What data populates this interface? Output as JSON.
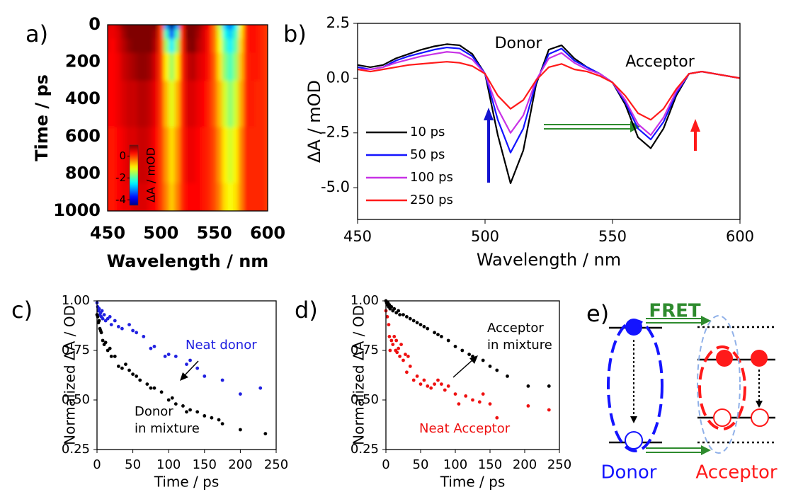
{
  "chart_data": [
    {
      "type": "heatmap",
      "panel": "a)",
      "xlabel": "Wavelength / nm",
      "ylabel": "Time / ps",
      "x": [
        450,
        455,
        460,
        465,
        470,
        475,
        480,
        485,
        490,
        495,
        500,
        505,
        510,
        515,
        520,
        525,
        530,
        535,
        540,
        545,
        550,
        555,
        560,
        565,
        570,
        575,
        580,
        585,
        590,
        595,
        600
      ],
      "y": [
        0,
        50,
        100,
        200,
        400,
        700,
        1000
      ],
      "z": [
        [
          0.5,
          0.4,
          0.6,
          0.9,
          1.1,
          1.3,
          1.5,
          1.6,
          1.5,
          1.0,
          0,
          -3.0,
          -4.9,
          -3.0,
          0.2,
          1.4,
          1.4,
          0.9,
          0.6,
          0.3,
          -0.3,
          -1.4,
          -2.7,
          -3.2,
          -2.5,
          -1.0,
          0.1,
          0.3,
          0.2,
          0.1,
          0
        ],
        [
          0.4,
          0.4,
          0.5,
          0.8,
          1.0,
          1.2,
          1.3,
          1.4,
          1.3,
          0.8,
          0,
          -2.1,
          -3.4,
          -2.1,
          0.1,
          1.1,
          1.2,
          0.8,
          0.5,
          0.2,
          -0.3,
          -1.2,
          -2.3,
          -2.7,
          -2.1,
          -0.9,
          0.1,
          0.3,
          0.2,
          0.1,
          0
        ],
        [
          0.4,
          0.3,
          0.5,
          0.7,
          0.9,
          1.0,
          1.1,
          1.2,
          1.1,
          0.7,
          0,
          -1.6,
          -2.5,
          -1.6,
          0.1,
          0.9,
          1.0,
          0.7,
          0.5,
          0.2,
          -0.3,
          -1.1,
          -2.0,
          -2.5,
          -1.9,
          -0.8,
          0.1,
          0.3,
          0.2,
          0.1,
          0
        ],
        [
          0.3,
          0.3,
          0.4,
          0.6,
          0.7,
          0.8,
          0.9,
          0.9,
          0.8,
          0.5,
          0,
          -1.0,
          -1.6,
          -1.0,
          0.1,
          0.6,
          0.7,
          0.5,
          0.4,
          0.2,
          -0.2,
          -0.9,
          -1.7,
          -2.1,
          -1.6,
          -0.7,
          0.1,
          0.2,
          0.2,
          0.1,
          0
        ],
        [
          0.3,
          0.3,
          0.4,
          0.5,
          0.6,
          0.6,
          0.7,
          0.7,
          0.6,
          0.4,
          0,
          -0.7,
          -1.2,
          -0.7,
          0.1,
          0.5,
          0.5,
          0.4,
          0.3,
          0.1,
          -0.2,
          -0.7,
          -1.3,
          -1.7,
          -1.3,
          -0.6,
          0.1,
          0.2,
          0.1,
          0.1,
          0
        ],
        [
          0.2,
          0.2,
          0.3,
          0.4,
          0.5,
          0.5,
          0.6,
          0.6,
          0.5,
          0.3,
          0,
          -0.5,
          -0.9,
          -0.5,
          0.1,
          0.4,
          0.4,
          0.3,
          0.2,
          0.1,
          -0.1,
          -0.5,
          -1.0,
          -1.3,
          -1.0,
          -0.4,
          0.1,
          0.1,
          0.1,
          0.1,
          0
        ],
        [
          0.2,
          0.2,
          0.3,
          0.4,
          0.4,
          0.5,
          0.5,
          0.5,
          0.4,
          0.3,
          0,
          -0.4,
          -0.8,
          -0.4,
          0.1,
          0.3,
          0.3,
          0.3,
          0.2,
          0.1,
          -0.1,
          -0.4,
          -0.9,
          -1.1,
          -0.9,
          -0.4,
          0.1,
          0.1,
          0.1,
          0.1,
          0
        ]
      ],
      "xlim": [
        450,
        600
      ],
      "ylim": [
        1000,
        0
      ],
      "xticks": [
        450,
        500,
        550,
        600
      ],
      "yticks": [
        0,
        200,
        400,
        600,
        800,
        1000
      ],
      "colormap": "jet",
      "colorbar": {
        "label": "ΔA / mOD",
        "zlim": [
          -4.5,
          1.0
        ],
        "ticks": [
          0,
          -2,
          -4
        ]
      }
    },
    {
      "type": "line",
      "panel": "b)",
      "xlabel": "Wavelength / nm",
      "ylabel": "ΔA / mOD",
      "x": [
        450,
        455,
        460,
        465,
        470,
        475,
        480,
        485,
        490,
        495,
        500,
        505,
        510,
        515,
        520,
        525,
        530,
        535,
        540,
        545,
        550,
        555,
        560,
        565,
        570,
        575,
        580,
        585,
        590,
        595,
        600
      ],
      "series": [
        {
          "name": "10 ps",
          "color": "#000000",
          "values": [
            0.6,
            0.5,
            0.6,
            0.9,
            1.1,
            1.3,
            1.45,
            1.55,
            1.5,
            1.1,
            0.2,
            -2.6,
            -4.8,
            -3.3,
            -0.3,
            1.3,
            1.5,
            0.9,
            0.5,
            0.2,
            -0.2,
            -1.2,
            -2.7,
            -3.2,
            -2.3,
            -0.8,
            0.2,
            0.3,
            0.2,
            0.1,
            0
          ]
        },
        {
          "name": "50 ps",
          "color": "#1414ff",
          "values": [
            0.5,
            0.4,
            0.5,
            0.8,
            1.0,
            1.15,
            1.3,
            1.4,
            1.35,
            1.0,
            0.2,
            -1.9,
            -3.4,
            -2.3,
            -0.2,
            1.1,
            1.35,
            0.8,
            0.5,
            0.2,
            -0.2,
            -1.1,
            -2.3,
            -2.8,
            -2.0,
            -0.7,
            0.2,
            0.3,
            0.2,
            0.1,
            0
          ]
        },
        {
          "name": "100 ps",
          "color": "#c832e6",
          "values": [
            0.4,
            0.4,
            0.5,
            0.7,
            0.85,
            1.0,
            1.1,
            1.2,
            1.15,
            0.85,
            0.2,
            -1.4,
            -2.5,
            -1.7,
            -0.1,
            0.9,
            1.15,
            0.7,
            0.4,
            0.2,
            -0.2,
            -1.0,
            -2.1,
            -2.6,
            -1.8,
            -0.6,
            0.2,
            0.3,
            0.2,
            0.1,
            0
          ]
        },
        {
          "name": "250 ps",
          "color": "#ff1a1a",
          "values": [
            0.4,
            0.3,
            0.4,
            0.5,
            0.6,
            0.65,
            0.7,
            0.75,
            0.7,
            0.55,
            0.2,
            -0.8,
            -1.4,
            -1.0,
            -0.1,
            0.5,
            0.65,
            0.4,
            0.3,
            0.1,
            -0.2,
            -0.8,
            -1.6,
            -1.9,
            -1.4,
            -0.5,
            0.2,
            0.3,
            0.2,
            0.1,
            0
          ]
        }
      ],
      "annotations": [
        "Donor",
        "Acceptor"
      ],
      "xlim": [
        450,
        600
      ],
      "ylim": [
        -6.45,
        2.5
      ],
      "xticks": [
        450,
        500,
        550,
        600
      ],
      "yticks": [
        {
          "value": -5,
          "label": "-5.0"
        },
        {
          "value": -2.5,
          "label": "-2.5"
        },
        {
          "value": 0,
          "label": "0.0"
        },
        {
          "value": 2.5,
          "label": "2.5"
        }
      ],
      "legend": "lower left"
    },
    {
      "type": "scatter",
      "panel": "c)",
      "xlabel": "Time / ps",
      "ylabel": "Normalized ΔA / OD",
      "series": [
        {
          "name": "Neat donor",
          "color": "#2020e0",
          "x": [
            0,
            1,
            2,
            3,
            4,
            5,
            6,
            7,
            8,
            10,
            12,
            15,
            18,
            20,
            25,
            30,
            35,
            45,
            50,
            55,
            65,
            75,
            80,
            95,
            100,
            110,
            125,
            130,
            140,
            150,
            175,
            200,
            228
          ],
          "values": [
            0.99,
            0.97,
            0.95,
            0.96,
            0.93,
            0.94,
            0.92,
            0.95,
            0.91,
            0.93,
            0.9,
            0.91,
            0.92,
            0.88,
            0.9,
            0.87,
            0.86,
            0.88,
            0.85,
            0.84,
            0.82,
            0.76,
            0.77,
            0.72,
            0.73,
            0.72,
            0.68,
            0.7,
            0.66,
            0.62,
            0.6,
            0.53,
            0.56
          ]
        },
        {
          "name": "Donor\nin mixture",
          "color": "#000000",
          "x": [
            0,
            1,
            2,
            3,
            4,
            5,
            6,
            8,
            10,
            12,
            15,
            18,
            20,
            25,
            30,
            35,
            40,
            45,
            50,
            55,
            60,
            70,
            75,
            80,
            90,
            100,
            105,
            110,
            120,
            125,
            130,
            140,
            150,
            160,
            170,
            175,
            200,
            235
          ],
          "values": [
            0.93,
            0.92,
            0.89,
            0.9,
            0.86,
            0.85,
            0.84,
            0.8,
            0.78,
            0.79,
            0.75,
            0.76,
            0.72,
            0.72,
            0.67,
            0.66,
            0.68,
            0.65,
            0.63,
            0.62,
            0.6,
            0.58,
            0.56,
            0.56,
            0.54,
            0.5,
            0.51,
            0.48,
            0.47,
            0.44,
            0.45,
            0.44,
            0.42,
            0.41,
            0.4,
            0.38,
            0.35,
            0.33
          ]
        }
      ],
      "xlim": [
        0,
        250
      ],
      "ylim": [
        0.25,
        1.0
      ],
      "xticks": [
        0,
        50,
        100,
        150,
        200,
        250
      ],
      "yticks": [
        {
          "value": 0.25,
          "label": "0.25"
        },
        {
          "value": 0.5,
          "label": "0.50"
        },
        {
          "value": 0.75,
          "label": "0.75"
        },
        {
          "value": 1,
          "label": "1.00"
        }
      ]
    },
    {
      "type": "scatter",
      "panel": "d)",
      "xlabel": "Time / ps",
      "ylabel": "Normalized ΔA / OD",
      "series": [
        {
          "name": "Acceptor\nin mixture",
          "color": "#000000",
          "x": [
            0,
            1,
            2,
            3,
            4,
            5,
            6,
            8,
            10,
            12,
            15,
            18,
            20,
            25,
            30,
            35,
            40,
            45,
            50,
            55,
            60,
            70,
            75,
            80,
            90,
            100,
            110,
            120,
            125,
            140,
            150,
            160,
            175,
            205,
            235
          ],
          "values": [
            1.0,
            0.99,
            0.98,
            0.99,
            0.97,
            0.98,
            0.96,
            0.97,
            0.95,
            0.96,
            0.94,
            0.95,
            0.93,
            0.93,
            0.92,
            0.91,
            0.9,
            0.89,
            0.88,
            0.87,
            0.86,
            0.84,
            0.83,
            0.82,
            0.8,
            0.77,
            0.75,
            0.73,
            0.72,
            0.7,
            0.67,
            0.65,
            0.62,
            0.57,
            0.57
          ]
        },
        {
          "name": "Neat Acceptor",
          "color": "#ee1111",
          "x": [
            0,
            2,
            4,
            5,
            6,
            8,
            10,
            12,
            14,
            15,
            16,
            18,
            20,
            22,
            25,
            28,
            30,
            32,
            35,
            40,
            45,
            50,
            55,
            60,
            65,
            70,
            75,
            80,
            85,
            90,
            100,
            105,
            115,
            125,
            135,
            140,
            150,
            160,
            205,
            235
          ],
          "values": [
            0.95,
            0.92,
            0.88,
            0.82,
            0.75,
            0.8,
            0.78,
            0.82,
            0.75,
            0.8,
            0.74,
            0.76,
            0.72,
            0.78,
            0.7,
            0.73,
            0.64,
            0.72,
            0.67,
            0.6,
            0.62,
            0.58,
            0.6,
            0.57,
            0.56,
            0.58,
            0.6,
            0.58,
            0.55,
            0.57,
            0.53,
            0.48,
            0.52,
            0.5,
            0.49,
            0.53,
            0.48,
            0.41,
            0.47,
            0.45
          ]
        }
      ],
      "xlim": [
        0,
        250
      ],
      "ylim": [
        0.25,
        1.0
      ],
      "xticks": [
        0,
        50,
        100,
        150,
        200,
        250
      ],
      "yticks": [
        {
          "value": 0.25,
          "label": "0.25"
        },
        {
          "value": 0.5,
          "label": "0.50"
        },
        {
          "value": 0.75,
          "label": "0.75"
        },
        {
          "value": 1,
          "label": "1.00"
        }
      ]
    }
  ],
  "diagram": {
    "panel": "e)",
    "fret": "FRET",
    "donor": "Donor",
    "acceptor": "Acceptor"
  }
}
